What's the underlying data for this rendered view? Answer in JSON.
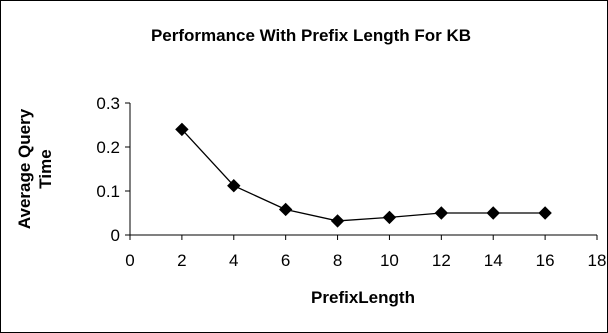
{
  "chart_data": {
    "type": "line",
    "title": "Performance With Prefix Length For KB",
    "xlabel": "PrefixLength",
    "ylabel_line1": "Average Query",
    "ylabel_line2": "Time",
    "x": [
      2,
      4,
      6,
      8,
      10,
      12,
      14,
      16
    ],
    "y": [
      0.24,
      0.112,
      0.058,
      0.032,
      0.04,
      0.05,
      0.05,
      0.05
    ],
    "xlim": [
      0,
      18
    ],
    "ylim": [
      0,
      0.3
    ],
    "x_ticks": [
      "0",
      "2",
      "4",
      "6",
      "8",
      "10",
      "12",
      "14",
      "16",
      "18"
    ],
    "y_ticks": [
      "0",
      "0.1",
      "0.2",
      "0.3"
    ],
    "grid": false,
    "legend": false,
    "marker": "diamond",
    "colors": {
      "line": "#000000",
      "marker": "#000000"
    }
  }
}
